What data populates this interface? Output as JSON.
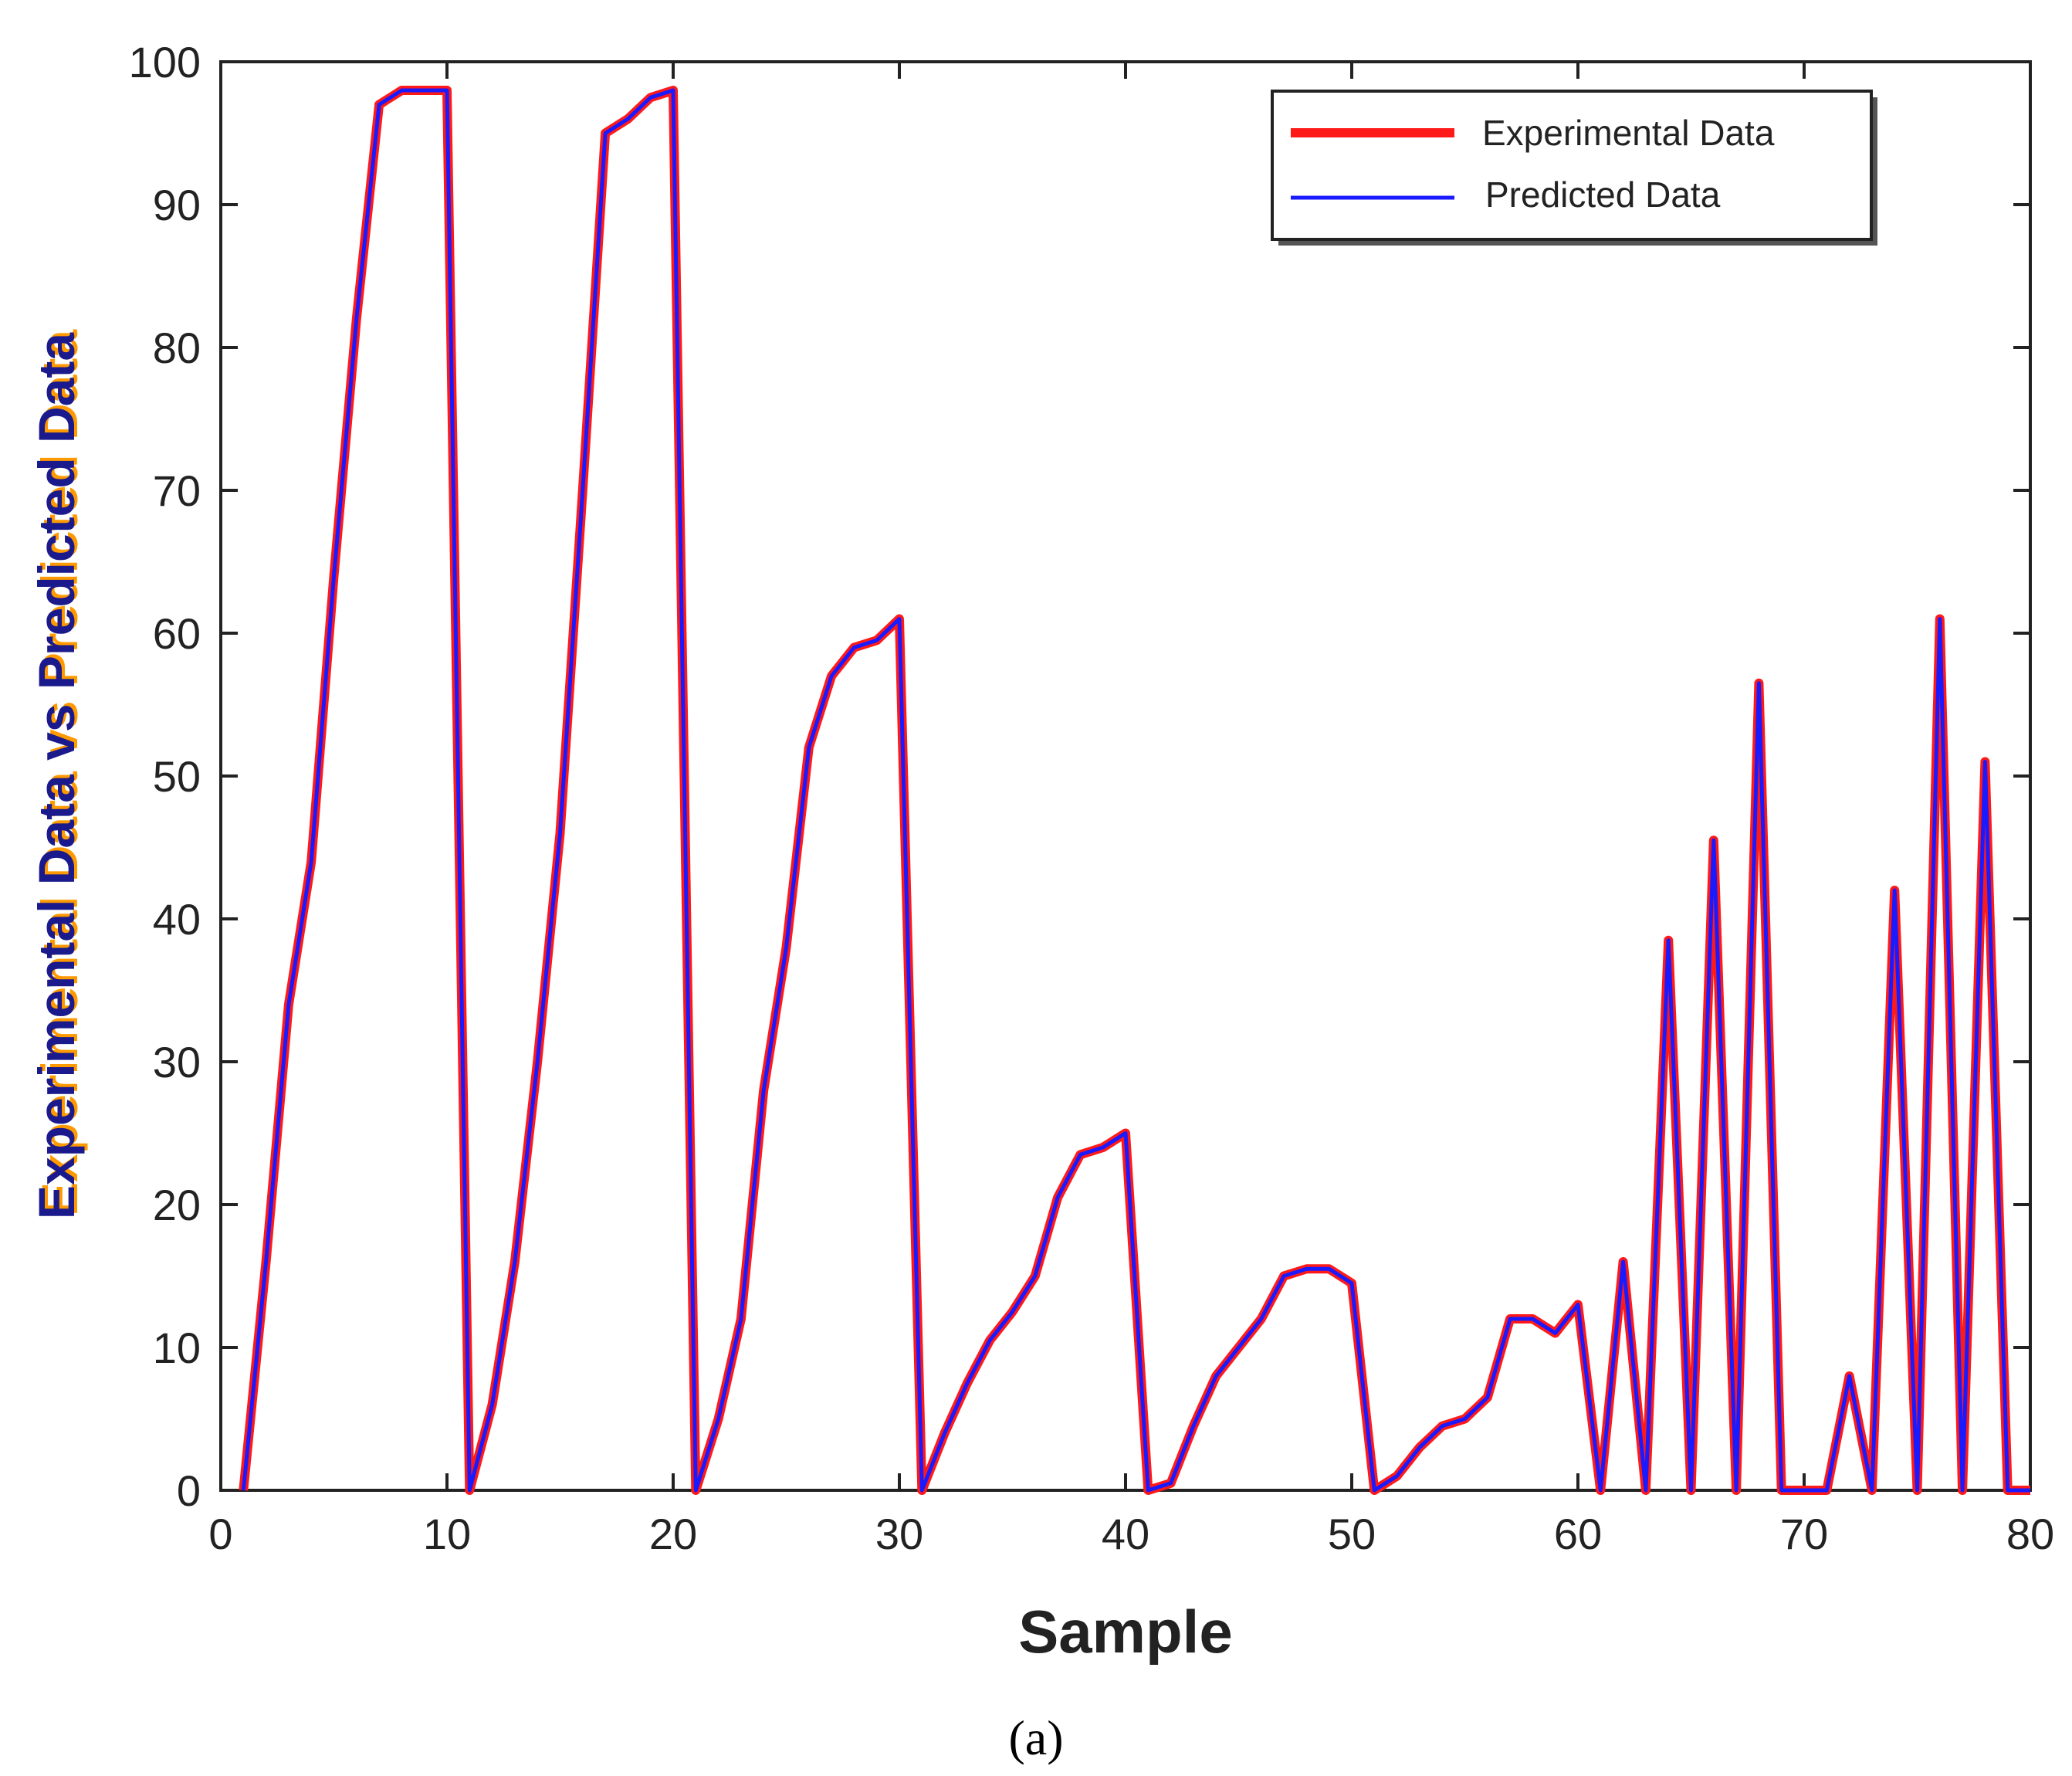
{
  "chart_data": {
    "type": "line",
    "title": "",
    "xlabel": "Sample",
    "ylabel": "Experimental Data vs Predicted Data",
    "caption": "(a)",
    "xlim": [
      0,
      80
    ],
    "ylim": [
      0,
      100
    ],
    "xticks": [
      0,
      10,
      20,
      30,
      40,
      50,
      60,
      70,
      80
    ],
    "yticks": [
      0,
      10,
      20,
      30,
      40,
      50,
      60,
      70,
      80,
      90,
      100
    ],
    "grid": false,
    "legend_position": "top-right",
    "x": [
      1,
      2,
      3,
      4,
      5,
      6,
      7,
      8,
      9,
      10,
      11,
      12,
      13,
      14,
      15,
      16,
      17,
      18,
      19,
      20,
      21,
      22,
      23,
      24,
      25,
      26,
      27,
      28,
      29,
      30,
      31,
      32,
      33,
      34,
      35,
      36,
      37,
      38,
      39,
      40,
      41,
      42,
      43,
      44,
      45,
      46,
      47,
      48,
      49,
      50,
      51,
      52,
      53,
      54,
      55,
      56,
      57,
      58,
      59,
      60,
      61,
      62,
      63,
      64,
      65,
      66,
      67,
      68,
      69,
      70,
      71,
      72,
      73,
      74,
      75,
      76,
      77,
      78,
      79,
      80
    ],
    "series": [
      {
        "name": "Experimental Data",
        "color": "#ff1a1a",
        "values": [
          0,
          16,
          34,
          44,
          64,
          82,
          97,
          98,
          98,
          98,
          0,
          6,
          16,
          30,
          46,
          70,
          95,
          96,
          97.5,
          98,
          0,
          5,
          12,
          28,
          38,
          52,
          57,
          59,
          59.5,
          61,
          0,
          4,
          7.5,
          10.5,
          12.5,
          15,
          20.5,
          23.5,
          24,
          25,
          0,
          0.5,
          4.5,
          8,
          10,
          12,
          15,
          15.5,
          15.5,
          14.5,
          0,
          1,
          3,
          4.5,
          5,
          6.5,
          12,
          12,
          11,
          13,
          0,
          16,
          0,
          38.5,
          0,
          45.5,
          0,
          56.5,
          0,
          0,
          0,
          8,
          0,
          42,
          0,
          61,
          0,
          51,
          0,
          0
        ]
      },
      {
        "name": "Predicted Data",
        "color": "#1a1aff",
        "values": [
          0,
          16,
          34,
          44,
          64,
          82,
          97,
          98,
          98,
          98,
          0,
          6,
          16,
          30,
          46,
          70,
          95,
          96,
          97.5,
          98,
          0,
          5,
          12,
          28,
          38,
          52,
          57,
          59,
          59.5,
          61,
          0,
          4,
          7.5,
          10.5,
          12.5,
          15,
          20.5,
          23.5,
          24,
          25,
          0,
          0.5,
          4.5,
          8,
          10,
          12,
          15,
          15.5,
          15.5,
          14.5,
          0,
          1,
          3,
          4.5,
          5,
          6.5,
          12,
          12,
          11,
          13,
          0,
          16,
          0,
          38.5,
          0,
          45.5,
          0,
          56.5,
          0,
          0,
          0,
          8,
          0,
          42,
          0,
          61,
          0,
          51,
          0,
          0
        ]
      }
    ]
  },
  "colors": {
    "ylabel_fill": "#1a1a8c",
    "ylabel_shadow": "#ff9900",
    "axis": "#222222"
  }
}
